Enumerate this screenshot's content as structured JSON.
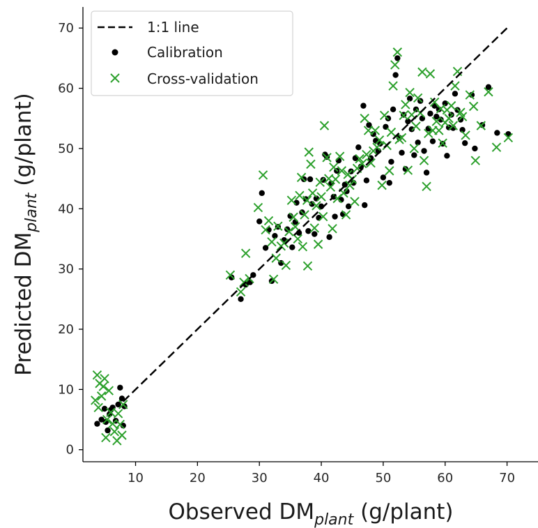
{
  "chart_data": {
    "type": "scatter",
    "xlabel": {
      "main": "Observed DM",
      "sub": "plant",
      "unit": " (g/plant)"
    },
    "ylabel": {
      "main": "Predicted DM",
      "sub": "plant",
      "unit": " (g/plant)"
    },
    "xlim": [
      1.5,
      75
    ],
    "ylim": [
      -2,
      73.5
    ],
    "xticks": [
      10,
      20,
      30,
      40,
      50,
      60,
      70
    ],
    "yticks": [
      0,
      10,
      20,
      30,
      40,
      50,
      60,
      70
    ],
    "grid": false,
    "legend": {
      "placement": "top-left",
      "entries": [
        {
          "label": "1:1 line",
          "marker": "dashed-line",
          "color": "#000000"
        },
        {
          "label": "Calibration",
          "marker": "dot",
          "color": "#000000"
        },
        {
          "label": "Cross-validation",
          "marker": "x",
          "color": "#2ca02c"
        }
      ]
    },
    "reference_line": {
      "name": "1:1 line",
      "from": [
        8,
        8
      ],
      "to": [
        70,
        70
      ],
      "style": "dashed",
      "color": "#000000"
    },
    "series": [
      {
        "name": "Calibration",
        "marker": "dot",
        "color": "#000000",
        "points": [
          [
            3.8,
            4.3
          ],
          [
            4.5,
            5.0
          ],
          [
            5.0,
            6.8
          ],
          [
            5.2,
            4.6
          ],
          [
            5.5,
            3.2
          ],
          [
            5.8,
            5.9
          ],
          [
            6.0,
            6.6
          ],
          [
            6.3,
            7.0
          ],
          [
            6.8,
            4.8
          ],
          [
            7.2,
            7.5
          ],
          [
            7.5,
            10.3
          ],
          [
            7.8,
            8.5
          ],
          [
            8.0,
            4.0
          ],
          [
            8.2,
            7.2
          ],
          [
            25.5,
            28.6
          ],
          [
            27.0,
            25.0
          ],
          [
            27.8,
            27.4
          ],
          [
            28.5,
            27.8
          ],
          [
            29.0,
            29.0
          ],
          [
            30.0,
            37.9
          ],
          [
            30.4,
            42.6
          ],
          [
            31.0,
            33.5
          ],
          [
            31.5,
            36.5
          ],
          [
            32.0,
            28.0
          ],
          [
            32.5,
            35.5
          ],
          [
            33.0,
            37.0
          ],
          [
            33.5,
            31.0
          ],
          [
            34.0,
            34.8
          ],
          [
            34.5,
            36.6
          ],
          [
            35.0,
            38.8
          ],
          [
            35.3,
            33.6
          ],
          [
            35.8,
            37.8
          ],
          [
            36.0,
            41.0
          ],
          [
            36.4,
            36.0
          ],
          [
            36.9,
            39.4
          ],
          [
            37.2,
            44.9
          ],
          [
            37.5,
            41.6
          ],
          [
            37.9,
            36.3
          ],
          [
            38.2,
            44.9
          ],
          [
            38.5,
            40.8
          ],
          [
            38.9,
            35.8
          ],
          [
            39.2,
            41.7
          ],
          [
            39.6,
            38.5
          ],
          [
            40.0,
            40.4
          ],
          [
            40.3,
            44.8
          ],
          [
            40.6,
            49.0
          ],
          [
            40.9,
            48.6
          ],
          [
            41.3,
            35.3
          ],
          [
            41.6,
            44.2
          ],
          [
            42.0,
            42.0
          ],
          [
            42.2,
            38.7
          ],
          [
            42.5,
            46.3
          ],
          [
            42.8,
            48.0
          ],
          [
            43.2,
            41.5
          ],
          [
            43.5,
            39.1
          ],
          [
            43.8,
            44.0
          ],
          [
            44.1,
            42.9
          ],
          [
            44.4,
            40.4
          ],
          [
            44.8,
            46.2
          ],
          [
            45.2,
            44.3
          ],
          [
            45.5,
            48.4
          ],
          [
            46.0,
            50.2
          ],
          [
            46.4,
            47.0
          ],
          [
            46.8,
            57.1
          ],
          [
            47.0,
            40.6
          ],
          [
            47.3,
            44.7
          ],
          [
            47.7,
            53.9
          ],
          [
            48.0,
            48.4
          ],
          [
            48.4,
            52.4
          ],
          [
            48.8,
            51.3
          ],
          [
            49.2,
            49.6
          ],
          [
            49.5,
            50.8
          ],
          [
            50.0,
            45.2
          ],
          [
            50.4,
            53.6
          ],
          [
            50.8,
            55.0
          ],
          [
            51.0,
            44.3
          ],
          [
            51.3,
            47.8
          ],
          [
            51.6,
            56.5
          ],
          [
            52.0,
            62.2
          ],
          [
            52.3,
            65.0
          ],
          [
            52.6,
            51.8
          ],
          [
            53.0,
            49.3
          ],
          [
            53.3,
            55.6
          ],
          [
            53.6,
            46.6
          ],
          [
            54.0,
            54.5
          ],
          [
            54.3,
            58.3
          ],
          [
            54.6,
            53.2
          ],
          [
            55.0,
            48.9
          ],
          [
            55.3,
            56.5
          ],
          [
            55.6,
            51.0
          ],
          [
            56.0,
            57.9
          ],
          [
            56.3,
            55.0
          ],
          [
            56.6,
            49.6
          ],
          [
            57.0,
            46.0
          ],
          [
            57.3,
            53.3
          ],
          [
            57.6,
            55.8
          ],
          [
            58.0,
            51.2
          ],
          [
            58.3,
            57.1
          ],
          [
            58.6,
            55.3
          ],
          [
            59.0,
            56.5
          ],
          [
            59.3,
            54.8
          ],
          [
            59.6,
            50.8
          ],
          [
            60.0,
            57.5
          ],
          [
            60.3,
            48.8
          ],
          [
            60.6,
            53.5
          ],
          [
            61.0,
            55.6
          ],
          [
            61.3,
            53.4
          ],
          [
            61.6,
            59.1
          ],
          [
            62.0,
            56.4
          ],
          [
            62.5,
            54.8
          ],
          [
            62.8,
            53.1
          ],
          [
            63.2,
            50.9
          ],
          [
            64.3,
            58.9
          ],
          [
            64.8,
            50.0
          ],
          [
            66.0,
            53.9
          ],
          [
            67.0,
            60.2
          ],
          [
            68.4,
            52.6
          ],
          [
            70.2,
            52.4
          ]
        ]
      },
      {
        "name": "Cross-validation",
        "marker": "x",
        "color": "#2ca02c",
        "points": [
          [
            3.5,
            8.2
          ],
          [
            3.8,
            12.4
          ],
          [
            4.0,
            7.0
          ],
          [
            4.2,
            11.0
          ],
          [
            4.5,
            8.9
          ],
          [
            4.8,
            10.5
          ],
          [
            5.0,
            11.8
          ],
          [
            5.2,
            2.0
          ],
          [
            5.4,
            5.0
          ],
          [
            5.7,
            9.8
          ],
          [
            6.0,
            6.2
          ],
          [
            6.3,
            4.3
          ],
          [
            6.6,
            3.0
          ],
          [
            7.0,
            1.5
          ],
          [
            7.2,
            6.0
          ],
          [
            7.5,
            4.2
          ],
          [
            7.8,
            2.4
          ],
          [
            8.0,
            7.5
          ],
          [
            25.3,
            29.0
          ],
          [
            27.0,
            26.2
          ],
          [
            27.5,
            27.8
          ],
          [
            27.8,
            32.6
          ],
          [
            28.4,
            28.4
          ],
          [
            29.8,
            40.2
          ],
          [
            30.6,
            45.6
          ],
          [
            31.0,
            36.5
          ],
          [
            31.5,
            38.0
          ],
          [
            32.0,
            34.5
          ],
          [
            32.3,
            28.3
          ],
          [
            32.7,
            31.8
          ],
          [
            33.0,
            37.1
          ],
          [
            33.5,
            33.8
          ],
          [
            34.0,
            34.3
          ],
          [
            34.3,
            30.6
          ],
          [
            34.8,
            36.2
          ],
          [
            35.2,
            41.4
          ],
          [
            35.5,
            38.6
          ],
          [
            35.8,
            37.0
          ],
          [
            36.2,
            35.0
          ],
          [
            36.5,
            42.2
          ],
          [
            36.8,
            45.2
          ],
          [
            37.0,
            33.7
          ],
          [
            37.3,
            39.0
          ],
          [
            37.7,
            41.4
          ],
          [
            37.8,
            30.5
          ],
          [
            38.0,
            49.4
          ],
          [
            38.3,
            47.4
          ],
          [
            38.6,
            42.6
          ],
          [
            38.9,
            36.8
          ],
          [
            39.2,
            40.5
          ],
          [
            39.5,
            34.1
          ],
          [
            39.8,
            44.4
          ],
          [
            40.0,
            42.0
          ],
          [
            40.3,
            38.7
          ],
          [
            40.5,
            53.8
          ],
          [
            40.9,
            48.5
          ],
          [
            41.2,
            45.0
          ],
          [
            41.5,
            43.6
          ],
          [
            41.8,
            36.7
          ],
          [
            42.0,
            46.9
          ],
          [
            42.3,
            44.9
          ],
          [
            42.6,
            41.7
          ],
          [
            43.0,
            48.7
          ],
          [
            43.3,
            46.3
          ],
          [
            43.6,
            42.6
          ],
          [
            44.0,
            39.0
          ],
          [
            44.3,
            45.7
          ],
          [
            44.6,
            43.9
          ],
          [
            45.0,
            44.9
          ],
          [
            45.4,
            41.2
          ],
          [
            45.8,
            46.7
          ],
          [
            46.2,
            48.3
          ],
          [
            46.6,
            47.5
          ],
          [
            47.0,
            55.0
          ],
          [
            47.3,
            49.0
          ],
          [
            47.6,
            53.0
          ],
          [
            48.0,
            47.6
          ],
          [
            48.4,
            49.6
          ],
          [
            48.7,
            53.0
          ],
          [
            49.0,
            50.2
          ],
          [
            49.4,
            51.4
          ],
          [
            49.8,
            43.9
          ],
          [
            50.2,
            55.5
          ],
          [
            50.6,
            50.5
          ],
          [
            51.0,
            46.3
          ],
          [
            51.3,
            52.7
          ],
          [
            51.6,
            60.4
          ],
          [
            51.9,
            63.9
          ],
          [
            52.3,
            66.0
          ],
          [
            52.6,
            51.5
          ],
          [
            53.0,
            51.8
          ],
          [
            53.3,
            55.5
          ],
          [
            53.6,
            57.3
          ],
          [
            54.0,
            46.4
          ],
          [
            54.3,
            59.3
          ],
          [
            54.6,
            55.6
          ],
          [
            55.0,
            50.0
          ],
          [
            55.3,
            53.7
          ],
          [
            55.6,
            58.4
          ],
          [
            56.0,
            55.9
          ],
          [
            56.3,
            62.7
          ],
          [
            56.6,
            48.0
          ],
          [
            57.0,
            43.7
          ],
          [
            57.3,
            52.5
          ],
          [
            57.6,
            62.4
          ],
          [
            58.0,
            53.0
          ],
          [
            58.3,
            57.7
          ],
          [
            58.6,
            54.5
          ],
          [
            59.0,
            53.0
          ],
          [
            59.3,
            56.6
          ],
          [
            59.6,
            50.9
          ],
          [
            60.0,
            54.3
          ],
          [
            60.3,
            56.4
          ],
          [
            60.6,
            55.0
          ],
          [
            61.0,
            57.1
          ],
          [
            61.3,
            53.8
          ],
          [
            61.6,
            60.4
          ],
          [
            62.0,
            62.8
          ],
          [
            62.5,
            56.0
          ],
          [
            62.8,
            55.3
          ],
          [
            63.3,
            52.2
          ],
          [
            64.0,
            58.9
          ],
          [
            64.6,
            57.0
          ],
          [
            64.9,
            48.0
          ],
          [
            65.8,
            53.8
          ],
          [
            67.0,
            59.4
          ],
          [
            68.3,
            50.2
          ],
          [
            70.2,
            51.8
          ]
        ]
      }
    ]
  }
}
